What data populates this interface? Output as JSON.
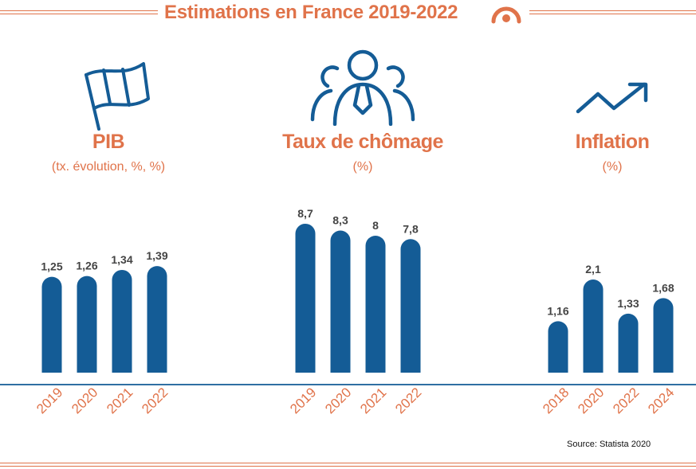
{
  "header": {
    "title": "Estimations en France 2019-2022"
  },
  "colors": {
    "accent": "#e0734a",
    "bar": "#145c96",
    "value_label": "#444444",
    "baseline": "#2f6fa3"
  },
  "icons": {
    "logo": "semicircle-logo-icon",
    "pib": "flag-icon",
    "chomage": "people-group-icon",
    "inflation": "trend-up-icon"
  },
  "chart_data": [
    {
      "type": "bar",
      "title": "PIB",
      "subtitle": "(tx. évolution, %, %)",
      "categories": [
        "2019",
        "2020",
        "2021",
        "2022"
      ],
      "values": [
        1.25,
        1.26,
        1.34,
        1.39
      ],
      "value_labels": [
        "1,25",
        "1,26",
        "1,34",
        "1,39"
      ],
      "grid": false
    },
    {
      "type": "bar",
      "title": "Taux de chômage",
      "subtitle": "(%)",
      "categories": [
        "2019",
        "2020",
        "2021",
        "2022"
      ],
      "values": [
        8.7,
        8.3,
        8,
        7.8
      ],
      "value_labels": [
        "8,7",
        "8,3",
        "8",
        "7,8"
      ],
      "grid": false
    },
    {
      "type": "bar",
      "title": "Inflation",
      "subtitle": "(%)",
      "categories": [
        "2018",
        "2020",
        "2022",
        "2024"
      ],
      "values": [
        1.16,
        2.1,
        1.33,
        1.68
      ],
      "value_labels": [
        "1,16",
        "2,1",
        "1,33",
        "1,68"
      ],
      "grid": false
    }
  ],
  "footer": {
    "source": "Source: Statista 2020"
  }
}
